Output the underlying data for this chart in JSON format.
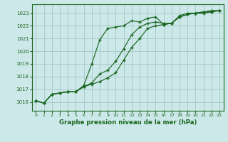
{
  "bg_color": "#cce8e8",
  "grid_color": "#aacccc",
  "line_color": "#1a6620",
  "marker_color": "#1a6620",
  "title": "Graphe pression niveau de la mer (hPa)",
  "xlim": [
    -0.5,
    23.5
  ],
  "ylim": [
    1015.3,
    1023.7
  ],
  "yticks": [
    1016,
    1017,
    1018,
    1019,
    1020,
    1021,
    1022,
    1023
  ],
  "xticks": [
    0,
    1,
    2,
    3,
    4,
    5,
    6,
    7,
    8,
    9,
    10,
    11,
    12,
    13,
    14,
    15,
    16,
    17,
    18,
    19,
    20,
    21,
    22,
    23
  ],
  "series": [
    [
      1016.1,
      1015.9,
      1016.6,
      1016.7,
      1016.8,
      1016.8,
      1017.3,
      1019.0,
      1020.9,
      1021.8,
      1021.9,
      1022.0,
      1022.4,
      1022.3,
      1022.6,
      1022.7,
      1022.1,
      1022.2,
      1022.8,
      1023.0,
      1023.0,
      1023.1,
      1023.2,
      1023.2
    ],
    [
      1016.1,
      1015.9,
      1016.6,
      1016.7,
      1016.8,
      1016.8,
      1017.2,
      1017.4,
      1017.6,
      1017.9,
      1018.3,
      1019.3,
      1020.3,
      1021.0,
      1021.8,
      1022.0,
      1022.1,
      1022.2,
      1022.7,
      1022.9,
      1023.0,
      1023.0,
      1023.1,
      1023.2
    ],
    [
      1016.1,
      1015.9,
      1016.6,
      1016.7,
      1016.8,
      1016.8,
      1017.2,
      1017.5,
      1018.2,
      1018.5,
      1019.2,
      1020.2,
      1021.3,
      1021.9,
      1022.2,
      1022.3,
      1022.2,
      1022.2,
      1022.7,
      1022.9,
      1023.0,
      1023.1,
      1023.1,
      1023.2
    ]
  ]
}
